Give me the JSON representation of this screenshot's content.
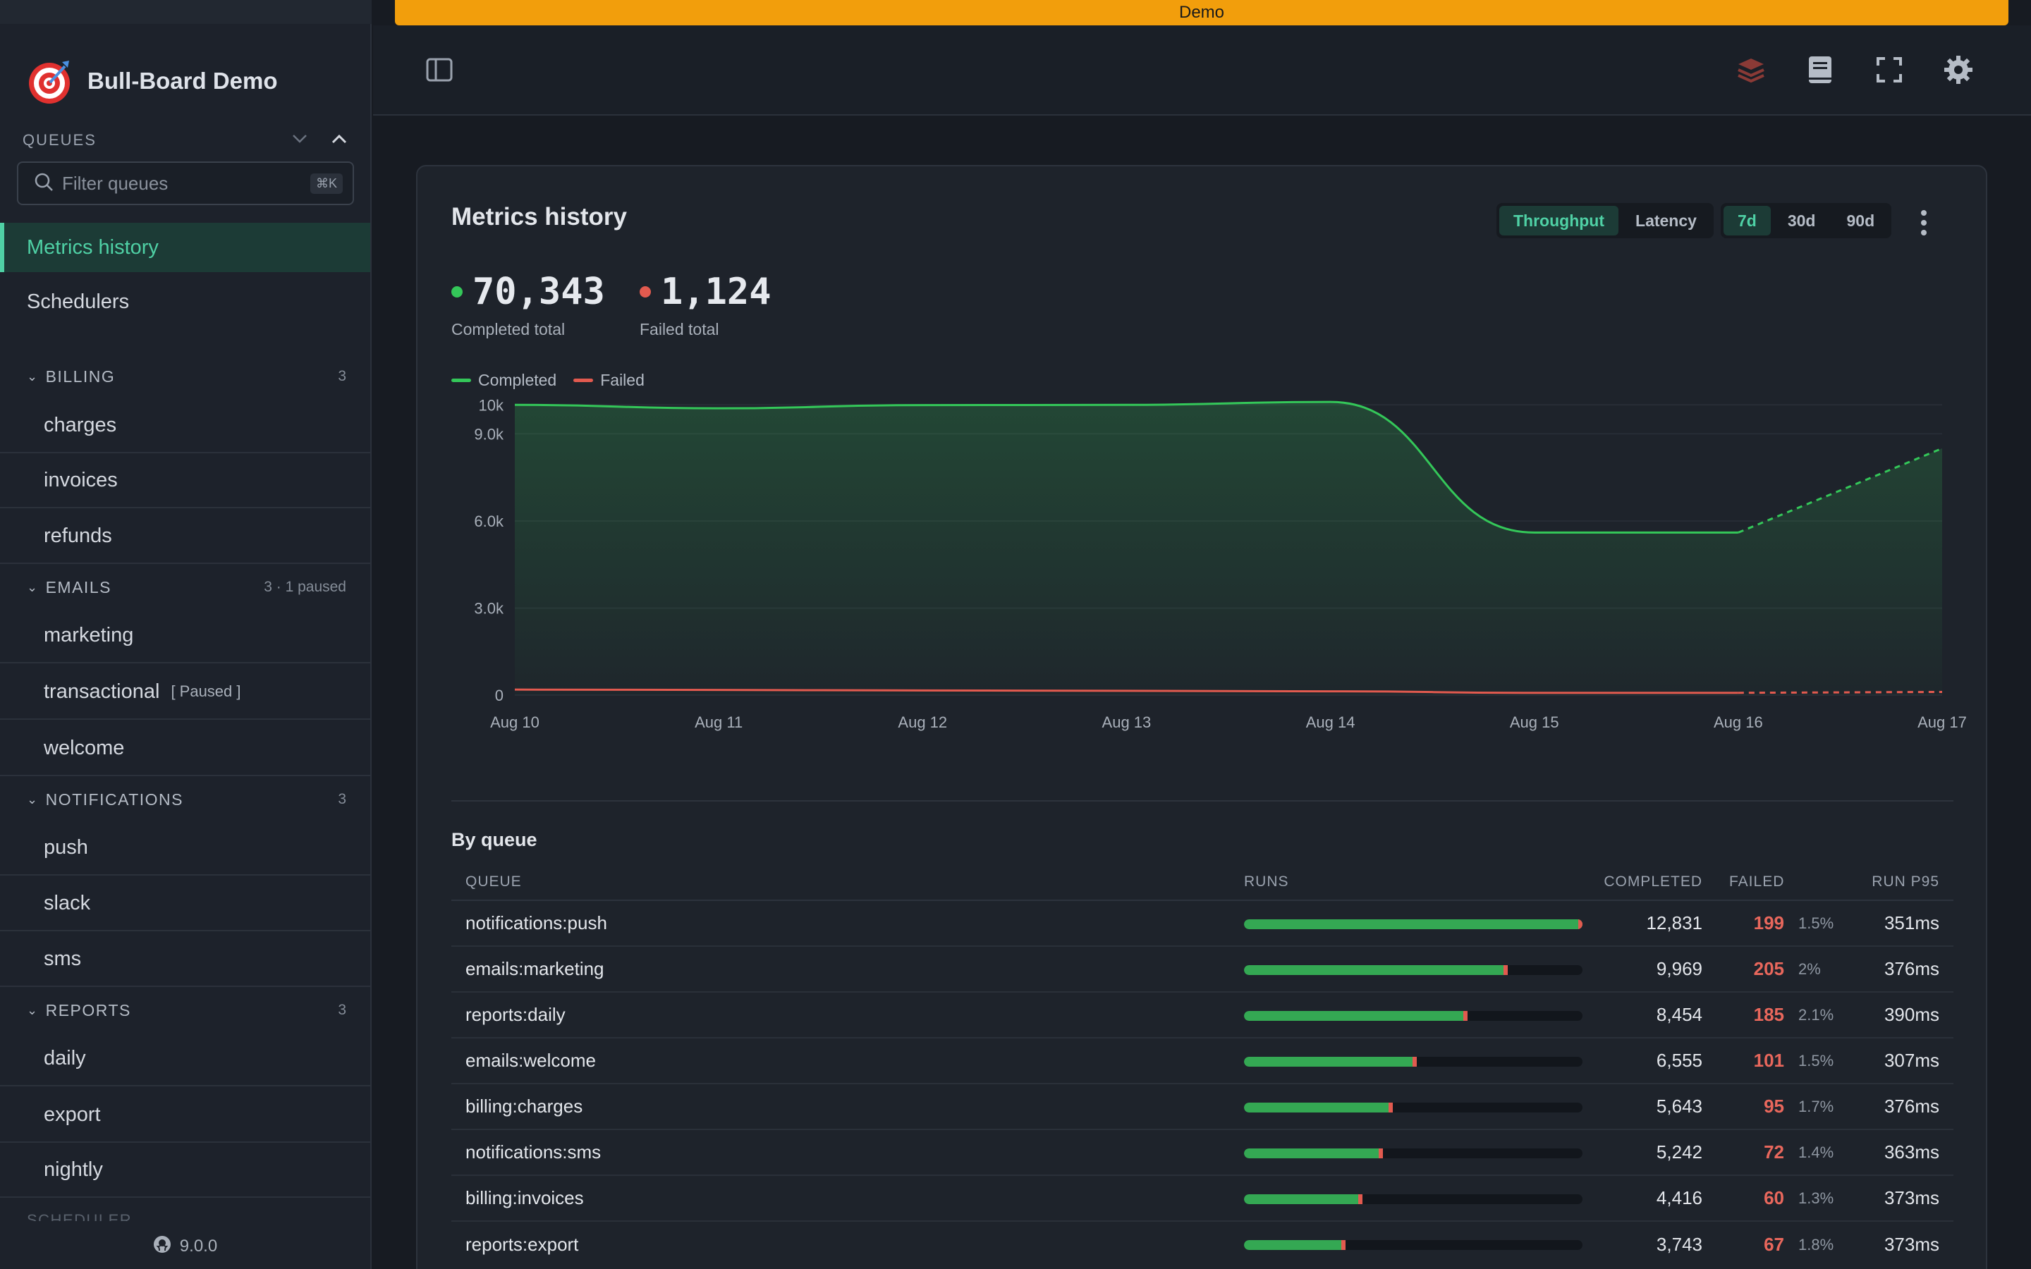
{
  "banner": "Demo",
  "brand": {
    "title": "Bull-Board Demo"
  },
  "sidebar": {
    "queues_label": "QUEUES",
    "filter_placeholder": "Filter queues",
    "filter_shortcut": "⌘K",
    "nav": [
      {
        "label": "Metrics history",
        "active": true
      },
      {
        "label": "Schedulers",
        "active": false
      }
    ],
    "groups": [
      {
        "label": "BILLING",
        "meta": "3",
        "items": [
          {
            "label": "charges"
          },
          {
            "label": "invoices"
          },
          {
            "label": "refunds"
          }
        ]
      },
      {
        "label": "EMAILS",
        "meta": "3 · 1 paused",
        "items": [
          {
            "label": "marketing"
          },
          {
            "label": "transactional",
            "tag": "[ Paused ]"
          },
          {
            "label": "welcome"
          }
        ]
      },
      {
        "label": "NOTIFICATIONS",
        "meta": "3",
        "items": [
          {
            "label": "push"
          },
          {
            "label": "slack"
          },
          {
            "label": "sms"
          }
        ]
      },
      {
        "label": "REPORTS",
        "meta": "3",
        "items": [
          {
            "label": "daily"
          },
          {
            "label": "export"
          },
          {
            "label": "nightly"
          }
        ]
      }
    ],
    "next_group_peek": "SCHEDULER",
    "version": "9.0.0"
  },
  "metrics": {
    "title": "Metrics history",
    "mode_tabs": [
      {
        "label": "Throughput",
        "active": true
      },
      {
        "label": "Latency",
        "active": false
      }
    ],
    "range_tabs": [
      {
        "label": "7d",
        "active": true
      },
      {
        "label": "30d",
        "active": false
      },
      {
        "label": "90d",
        "active": false
      }
    ],
    "completed_total": "70,343",
    "completed_label": "Completed total",
    "failed_total": "1,124",
    "failed_label": "Failed total",
    "legend": {
      "completed": "Completed",
      "failed": "Failed"
    }
  },
  "chart_data": {
    "type": "area",
    "categories": [
      "Aug 10",
      "Aug 11",
      "Aug 12",
      "Aug 13",
      "Aug 14",
      "Aug 15",
      "Aug 16",
      "Aug 17"
    ],
    "y_ticks": [
      "0",
      "3.0k",
      "6.0k",
      "9.0k",
      "10k"
    ],
    "ylim": [
      0,
      10200
    ],
    "series": [
      {
        "name": "Completed",
        "color": "#34c759",
        "values": [
          10000,
          9880,
          9990,
          10000,
          10100,
          5600,
          5600,
          8500
        ],
        "projected_from_index": 6
      },
      {
        "name": "Failed",
        "color": "#e25a4f",
        "values": [
          190,
          180,
          160,
          150,
          130,
          80,
          80,
          110
        ],
        "projected_from_index": 6
      }
    ]
  },
  "by_queue": {
    "title": "By queue",
    "columns": {
      "queue": "QUEUE",
      "runs": "RUNS",
      "completed": "COMPLETED",
      "failed": "FAILED",
      "p95": "RUN P95"
    },
    "rows": [
      {
        "queue": "notifications:push",
        "completed": "12,831",
        "failed": "199",
        "failed_pct": "1.5%",
        "p95": "351ms",
        "runs_fraction": 1.0
      },
      {
        "queue": "emails:marketing",
        "completed": "9,969",
        "failed": "205",
        "failed_pct": "2%",
        "p95": "376ms",
        "runs_fraction": 0.78
      },
      {
        "queue": "reports:daily",
        "completed": "8,454",
        "failed": "185",
        "failed_pct": "2.1%",
        "p95": "390ms",
        "runs_fraction": 0.66
      },
      {
        "queue": "emails:welcome",
        "completed": "6,555",
        "failed": "101",
        "failed_pct": "1.5%",
        "p95": "307ms",
        "runs_fraction": 0.51
      },
      {
        "queue": "billing:charges",
        "completed": "5,643",
        "failed": "95",
        "failed_pct": "1.7%",
        "p95": "376ms",
        "runs_fraction": 0.44
      },
      {
        "queue": "notifications:sms",
        "completed": "5,242",
        "failed": "72",
        "failed_pct": "1.4%",
        "p95": "363ms",
        "runs_fraction": 0.41
      },
      {
        "queue": "billing:invoices",
        "completed": "4,416",
        "failed": "60",
        "failed_pct": "1.3%",
        "p95": "373ms",
        "runs_fraction": 0.35
      },
      {
        "queue": "reports:export",
        "completed": "3,743",
        "failed": "67",
        "failed_pct": "1.8%",
        "p95": "373ms",
        "runs_fraction": 0.3
      }
    ]
  }
}
